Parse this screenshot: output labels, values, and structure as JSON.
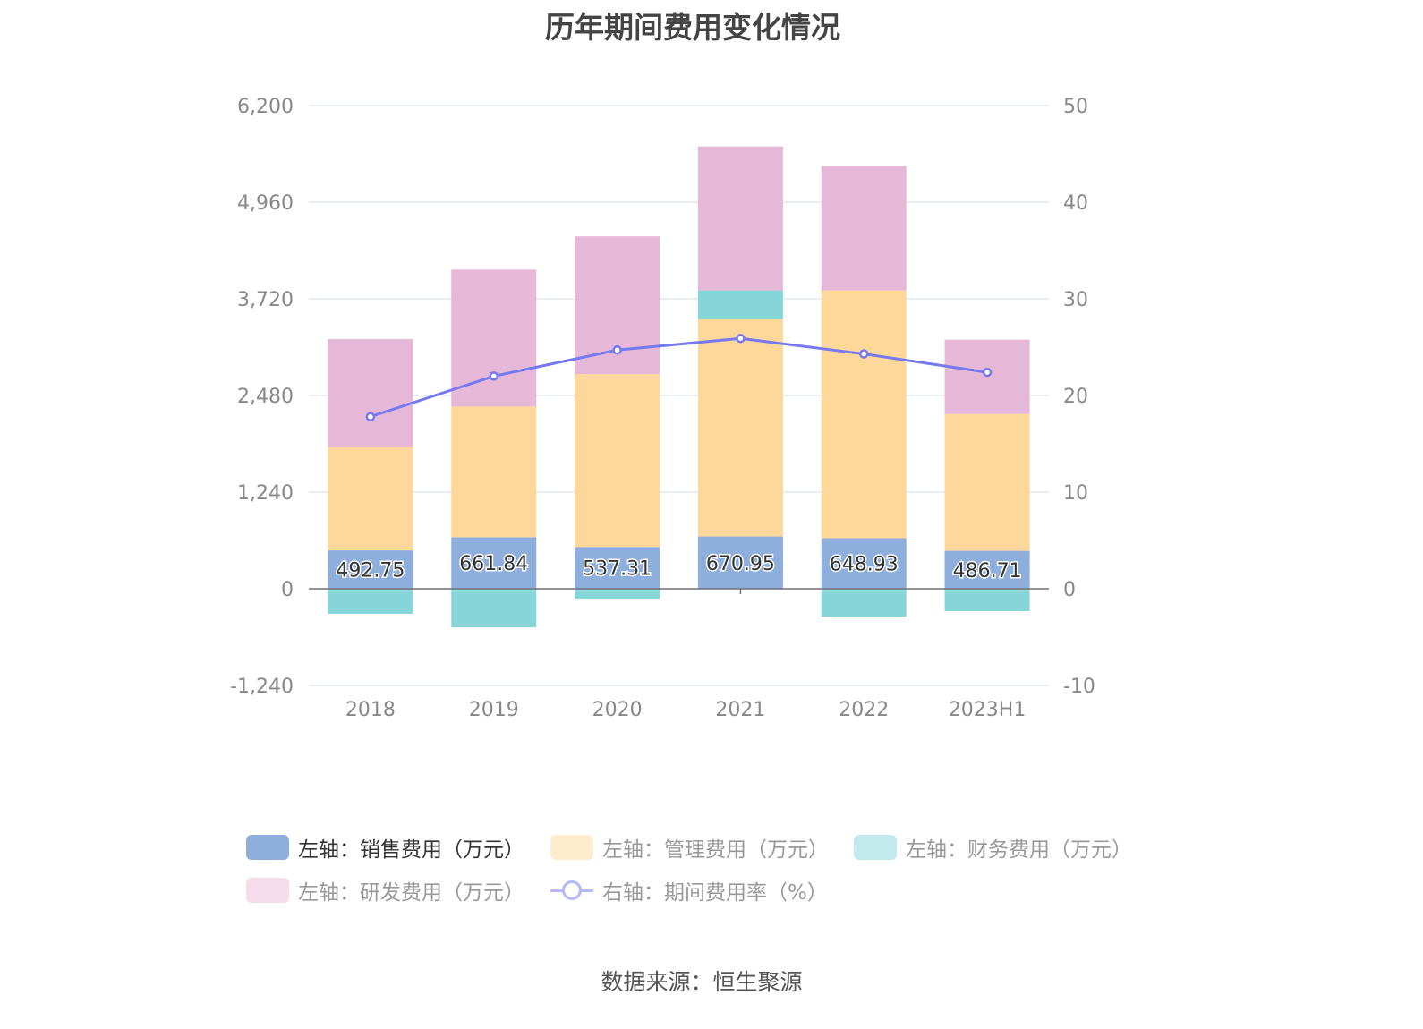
{
  "title": "历年期间费用变化情况",
  "source": "数据来源：恒生聚源",
  "legend": [
    {
      "label": "左轴：销售费用（万元）",
      "color": "#8eaedb",
      "type": "bar",
      "active": true
    },
    {
      "label": "左轴：管理费用（万元）",
      "color": "#feecce",
      "type": "bar",
      "active": false
    },
    {
      "label": "左轴：财务费用（万元）",
      "color": "#c2eaec",
      "type": "bar",
      "active": false
    },
    {
      "label": "左轴：研发费用（万元）",
      "color": "#f4dcea",
      "type": "bar",
      "active": false
    },
    {
      "label": "右轴：期间费用率（%）",
      "color": "#b4b8fa",
      "type": "line",
      "active": false
    }
  ],
  "chart_data": {
    "type": "bar",
    "stacked": true,
    "title": "历年期间费用变化情况",
    "categories": [
      "2018",
      "2019",
      "2020",
      "2021",
      "2022",
      "2023H1"
    ],
    "left_axis": {
      "ticks": [
        "-1,240",
        "0",
        "1,240",
        "2,480",
        "3,720",
        "4,960",
        "6,200"
      ],
      "range": [
        -1240,
        6200
      ]
    },
    "right_axis": {
      "ticks": [
        "-10",
        "0",
        "10",
        "20",
        "30",
        "40",
        "50"
      ],
      "range": [
        -10,
        50
      ]
    },
    "grid": true,
    "legend_position": "bottom",
    "series": [
      {
        "name": "左轴：销售费用（万元）",
        "axis": "left",
        "type": "bar",
        "color": "#8eaedb",
        "values": [
          492.75,
          661.84,
          537.31,
          670.95,
          648.93,
          486.71
        ],
        "labels": [
          "492.75",
          "661.84",
          "537.31",
          "670.95",
          "648.93",
          "486.71"
        ]
      },
      {
        "name": "左轴：管理费用（万元）",
        "axis": "left",
        "type": "bar",
        "color": "#fed89b",
        "values": [
          1320,
          1676,
          2216,
          2790,
          3180,
          1756
        ]
      },
      {
        "name": "左轴：财务费用（万元）",
        "axis": "left",
        "type": "bar",
        "color": "#86d5d8",
        "values": [
          -321,
          -494,
          -126,
          367,
          -356,
          -287
        ]
      },
      {
        "name": "左轴：研发费用（万元）",
        "axis": "left",
        "type": "bar",
        "color": "#e6b8d8",
        "values": [
          1390,
          1757,
          1768,
          1848,
          1596,
          953
        ]
      },
      {
        "name": "右轴：期间费用率（%）",
        "axis": "right",
        "type": "line",
        "color": "#7679f2",
        "values": [
          17.8,
          22.0,
          24.7,
          25.9,
          24.3,
          22.4
        ]
      }
    ]
  }
}
